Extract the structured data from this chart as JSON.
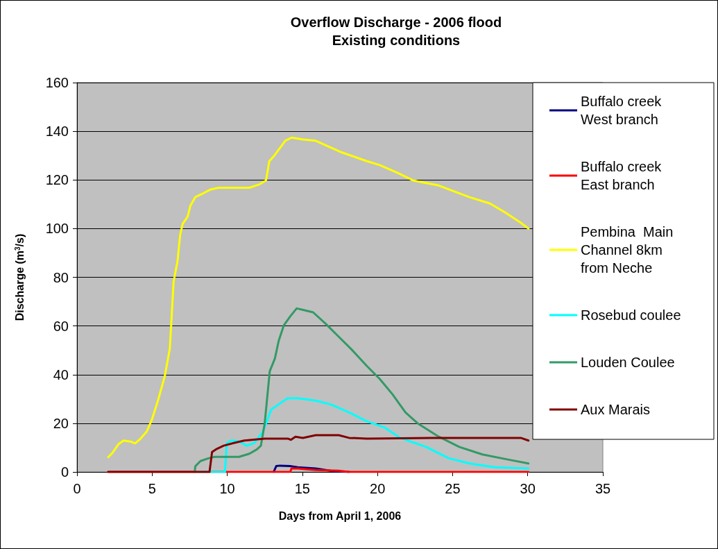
{
  "chart_data": {
    "type": "line",
    "title": "Overflow Discharge - 2006 flood",
    "subtitle": "Existing conditions",
    "xlabel": "Days from April 1, 2006",
    "ylabel": "Discharge (m$^{3}$/s)",
    "xlim": [
      0,
      35
    ],
    "xticks": [
      0,
      5,
      10,
      15,
      20,
      25,
      30,
      35
    ],
    "ylim": [
      0,
      160
    ],
    "yticks": [
      0,
      20,
      40,
      60,
      80,
      100,
      120,
      140,
      160
    ],
    "grid": "y",
    "legend": "right",
    "series": [
      {
        "name": "Buffalo creek West branch",
        "color": "#000080",
        "x": [
          13.09,
          13.26,
          13.5,
          14.18,
          14.69,
          15.89,
          17.08,
          18.1
        ],
        "values": [
          0,
          2.4,
          2.6,
          2.4,
          1.9,
          1.4,
          0.3,
          0
        ]
      },
      {
        "name": "Buffalo creek East branch",
        "color": "#ff0000",
        "x": [
          2.07,
          14.2,
          14.27,
          14.69,
          15.89,
          17.42,
          18.1,
          30.05
        ],
        "values": [
          0,
          0,
          1.4,
          1.4,
          0.8,
          0.5,
          0,
          0
        ]
      },
      {
        "name": "Pembina  Main Channel 8km from Neche",
        "color": "#ffff00",
        "x": [
          2.08,
          2.34,
          2.76,
          3.1,
          3.62,
          3.87,
          4.2,
          4.64,
          4.98,
          5.41,
          5.84,
          6.18,
          6.43,
          6.69,
          6.86,
          7.03,
          7.37,
          7.54,
          7.88,
          8.4,
          8.9,
          9.42,
          11.47,
          12.15,
          12.58,
          12.8,
          13.17,
          13.86,
          14.28,
          15.05,
          15.89,
          17.59,
          19.3,
          20.15,
          21.35,
          22.37,
          24.08,
          26.13,
          27.49,
          28.51,
          29.54,
          30.05
        ],
        "values": [
          6.1,
          7.7,
          11.4,
          12.9,
          12.4,
          11.7,
          13.5,
          16.6,
          21.4,
          29.8,
          39.3,
          50.8,
          78.2,
          86.6,
          97.2,
          101.9,
          105,
          109.3,
          113,
          114.5,
          116.1,
          116.8,
          116.8,
          118.2,
          119.8,
          127.7,
          130.3,
          136.1,
          137.4,
          136.6,
          136.1,
          131.4,
          127.7,
          126.1,
          122.9,
          119.8,
          117.7,
          112.9,
          110.3,
          106.6,
          102.4,
          100
        ]
      },
      {
        "name": "Rosebud coulee",
        "color": "#00ffff",
        "x": [
          8.0,
          9.85,
          9.97,
          10.27,
          10.78,
          11.3,
          11.81,
          12.32,
          12.58,
          12.92,
          13.52,
          14.03,
          14.71,
          15.03,
          15.89,
          16.91,
          18.11,
          19.3,
          20.49,
          21.52,
          23.23,
          24.76,
          26.13,
          27.83,
          30.05
        ],
        "values": [
          0,
          0,
          11.9,
          12.9,
          12.6,
          10.8,
          11.9,
          16.1,
          19.8,
          25.6,
          28.2,
          30.3,
          30.3,
          30,
          29.3,
          27.7,
          24.5,
          20.8,
          18.2,
          14,
          10.3,
          5.6,
          3.5,
          1.9,
          1.4
        ]
      },
      {
        "name": "Louden Coulee",
        "color": "#339966",
        "x": [
          7.83,
          7.88,
          8.22,
          8.74,
          9.16,
          10.78,
          11.47,
          11.98,
          12.24,
          12.49,
          12.83,
          13.17,
          13.43,
          13.77,
          14.2,
          14.62,
          15.05,
          15.72,
          16.57,
          17.25,
          18.28,
          19.3,
          20.15,
          21.0,
          21.86,
          22.71,
          24.08,
          25.44,
          26.98,
          28.69,
          30.05
        ],
        "values": [
          0,
          2.4,
          4.5,
          5.6,
          6.2,
          6.2,
          7.5,
          9.3,
          10.8,
          19.8,
          41.4,
          46.6,
          54,
          60.3,
          64,
          67.2,
          66.6,
          65.6,
          60.8,
          56.6,
          50.3,
          43.5,
          38.2,
          31.9,
          24.5,
          19.8,
          14.5,
          10.3,
          7.2,
          5.1,
          3.5
        ]
      },
      {
        "name": "Aux Marais",
        "color": "#800000",
        "x": [
          2.07,
          8.82,
          8.99,
          9.25,
          9.76,
          10.44,
          11.13,
          12.49,
          14.03,
          14.23,
          14.54,
          15.03,
          15.89,
          17.42,
          18.11,
          19.3,
          23.57,
          29.54,
          30.05
        ],
        "values": [
          0,
          0,
          8.2,
          9.3,
          10.8,
          11.9,
          12.9,
          13.7,
          13.7,
          13.2,
          14.5,
          14,
          15.1,
          15.1,
          14,
          13.7,
          14,
          14,
          12.9
        ]
      }
    ]
  }
}
